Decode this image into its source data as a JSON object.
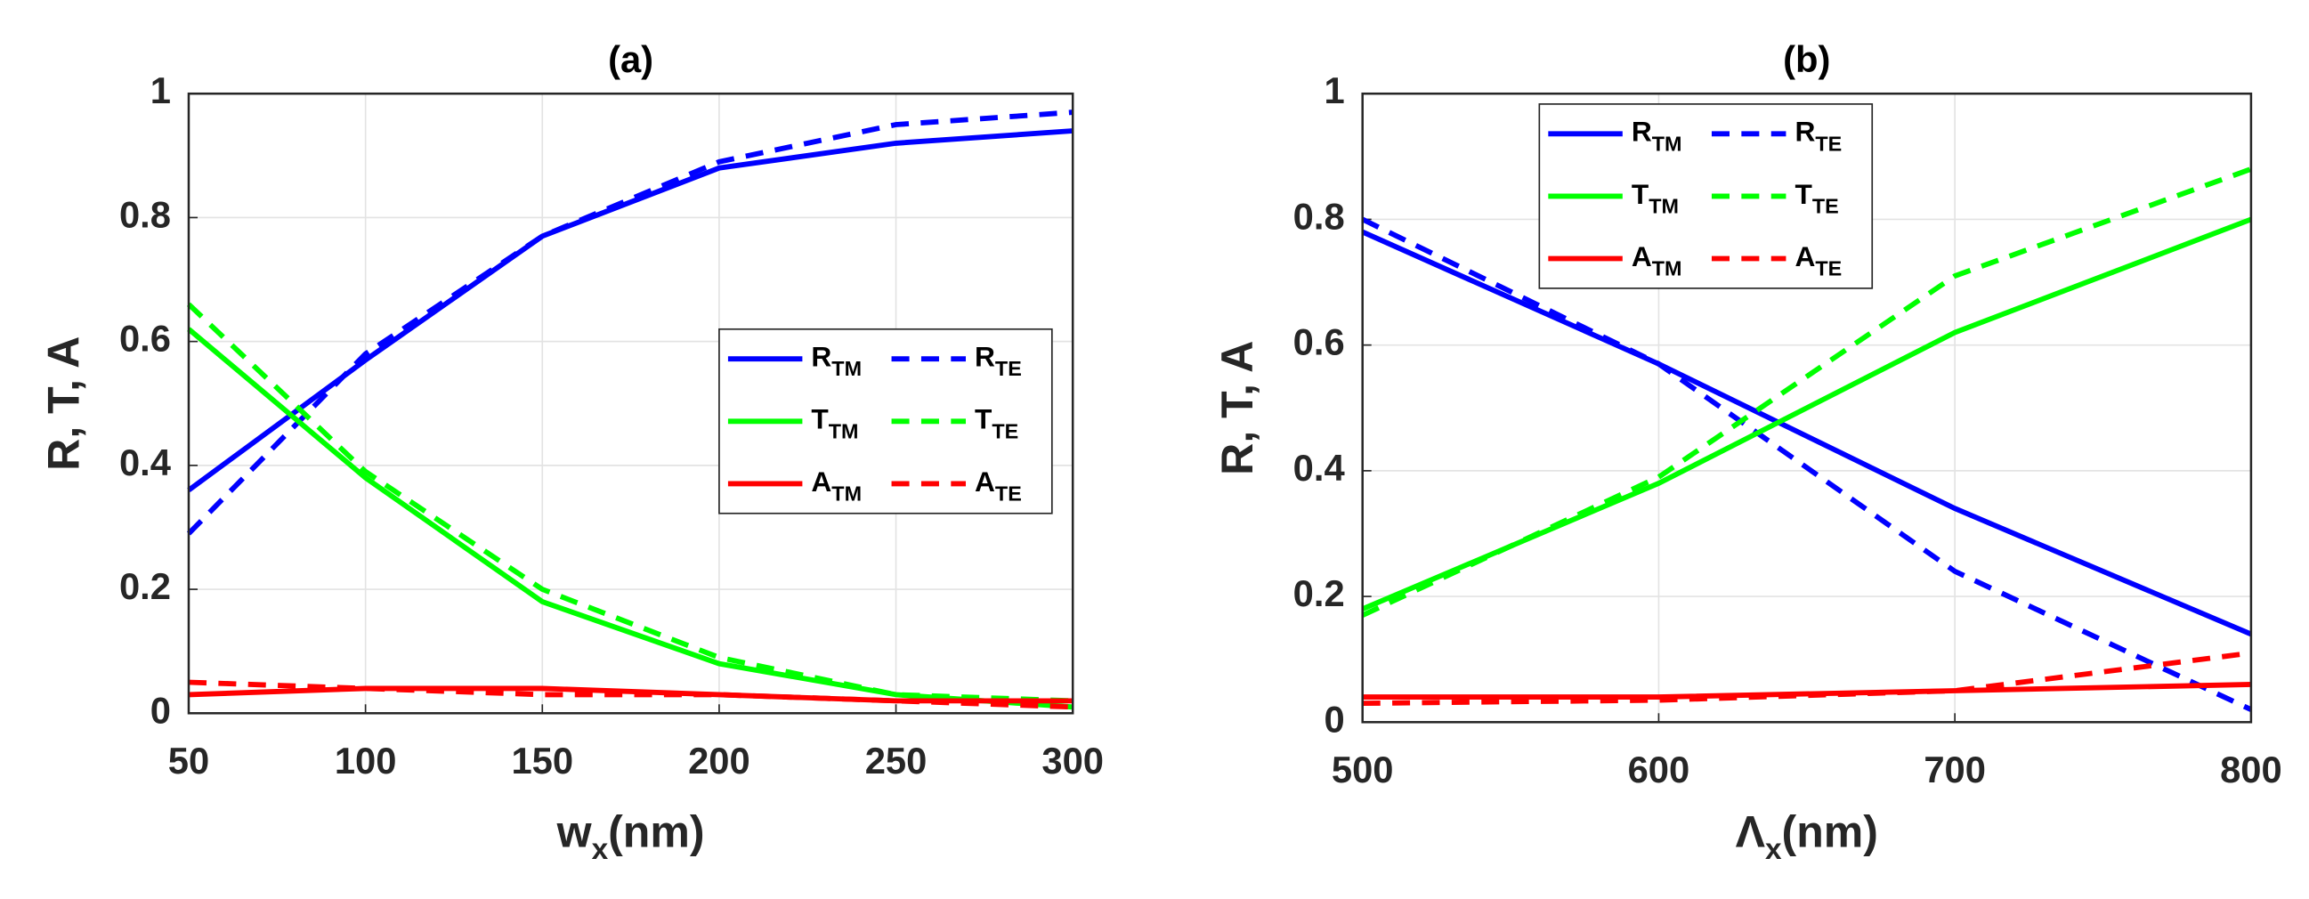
{
  "chart_data": [
    {
      "type": "line",
      "title": "(a)",
      "xlabel": "wx(nm)",
      "ylabel": "R, T, A",
      "x": [
        50,
        100,
        150,
        200,
        250,
        300
      ],
      "xlim": [
        50,
        300
      ],
      "xticks": [
        50,
        100,
        150,
        200,
        250,
        300
      ],
      "ylim": [
        0,
        1
      ],
      "yticks": [
        0,
        0.2,
        0.4,
        0.6,
        0.8,
        1
      ],
      "grid": true,
      "legend": "east",
      "series": [
        {
          "name": "RTM",
          "color": "#0000ff",
          "dashed": false,
          "values": [
            0.36,
            0.57,
            0.77,
            0.88,
            0.92,
            0.94
          ]
        },
        {
          "name": "RTE",
          "color": "#0000ff",
          "dashed": true,
          "values": [
            0.29,
            0.58,
            0.77,
            0.89,
            0.95,
            0.97
          ]
        },
        {
          "name": "TTM",
          "color": "#00ff00",
          "dashed": false,
          "values": [
            0.62,
            0.38,
            0.18,
            0.08,
            0.03,
            0.01
          ]
        },
        {
          "name": "TTE",
          "color": "#00ff00",
          "dashed": true,
          "values": [
            0.66,
            0.39,
            0.2,
            0.09,
            0.03,
            0.02
          ]
        },
        {
          "name": "ATM",
          "color": "#ff0000",
          "dashed": false,
          "values": [
            0.03,
            0.04,
            0.04,
            0.03,
            0.02,
            0.02
          ]
        },
        {
          "name": "ATE",
          "color": "#ff0000",
          "dashed": true,
          "values": [
            0.05,
            0.04,
            0.03,
            0.03,
            0.02,
            0.01
          ]
        }
      ]
    },
    {
      "type": "line",
      "title": "(b)",
      "xlabel": "Λx(nm)",
      "ylabel": "R, T, A",
      "x": [
        500,
        600,
        700,
        800
      ],
      "xlim": [
        500,
        800
      ],
      "xticks": [
        500,
        600,
        700,
        800
      ],
      "ylim": [
        0,
        1
      ],
      "yticks": [
        0,
        0.2,
        0.4,
        0.6,
        0.8,
        1
      ],
      "grid": true,
      "legend": "north",
      "series": [
        {
          "name": "RTM",
          "color": "#0000ff",
          "dashed": false,
          "values": [
            0.78,
            0.57,
            0.34,
            0.14
          ]
        },
        {
          "name": "RTE",
          "color": "#0000ff",
          "dashed": true,
          "values": [
            0.8,
            0.57,
            0.24,
            0.02
          ]
        },
        {
          "name": "TTM",
          "color": "#00ff00",
          "dashed": false,
          "values": [
            0.18,
            0.38,
            0.62,
            0.8
          ]
        },
        {
          "name": "TTE",
          "color": "#00ff00",
          "dashed": true,
          "values": [
            0.17,
            0.39,
            0.71,
            0.88
          ]
        },
        {
          "name": "ATM",
          "color": "#ff0000",
          "dashed": false,
          "values": [
            0.04,
            0.04,
            0.05,
            0.06
          ]
        },
        {
          "name": "ATE",
          "color": "#ff0000",
          "dashed": true,
          "values": [
            0.03,
            0.035,
            0.05,
            0.11
          ]
        }
      ]
    }
  ]
}
